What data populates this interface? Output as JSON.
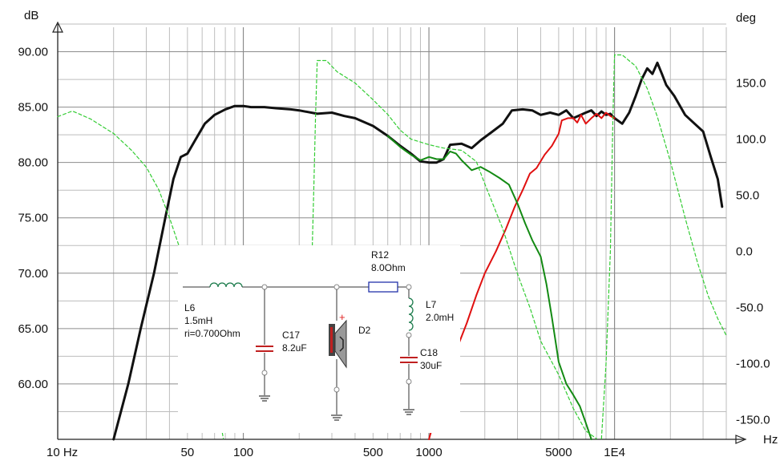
{
  "colors": {
    "spl_total": "#111111",
    "spl_red": "#e01010",
    "spl_green": "#138a13",
    "phase": "#33cc33",
    "grid_major": "#8c8c8c",
    "grid_minor": "#bdbdbd"
  },
  "chart_data": {
    "type": "line",
    "xlabel": "Hz",
    "ylabel": "dB",
    "y2label": "deg",
    "xscale": "log",
    "xlim": [
      10,
      40000
    ],
    "ylim": [
      55,
      92.5
    ],
    "y2lim": [
      -167.5,
      202.5
    ],
    "grid": true,
    "xticks": [
      {
        "value": 10,
        "label": "10 Hz"
      },
      {
        "value": 50,
        "label": "50"
      },
      {
        "value": 100,
        "label": "100"
      },
      {
        "value": 500,
        "label": "500"
      },
      {
        "value": 1000,
        "label": "1000"
      },
      {
        "value": 5000,
        "label": "5000"
      },
      {
        "value": 10000,
        "label": "1E4"
      }
    ],
    "yticks": [
      {
        "value": 90,
        "label": "90.00"
      },
      {
        "value": 85,
        "label": "85.00"
      },
      {
        "value": 80,
        "label": "80.00"
      },
      {
        "value": 75,
        "label": "75.00"
      },
      {
        "value": 70,
        "label": "70.00"
      },
      {
        "value": 65,
        "label": "65.00"
      },
      {
        "value": 60,
        "label": "60.00"
      }
    ],
    "y2ticks": [
      {
        "value": 150,
        "label": "150.0"
      },
      {
        "value": 100,
        "label": "100.0"
      },
      {
        "value": 50,
        "label": "50.0"
      },
      {
        "value": 0,
        "label": "0.0"
      },
      {
        "value": -50,
        "label": "-50.0"
      },
      {
        "value": -100,
        "label": "-100.0"
      },
      {
        "value": -150,
        "label": "-150.0"
      }
    ],
    "series": [
      {
        "axis": "y",
        "colorKey": "spl_total",
        "width": 3,
        "dash": "",
        "points": [
          [
            20,
            55
          ],
          [
            24,
            60
          ],
          [
            28,
            65
          ],
          [
            33,
            70
          ],
          [
            38,
            75
          ],
          [
            42,
            78.5
          ],
          [
            46,
            80.5
          ],
          [
            50,
            80.8
          ],
          [
            55,
            82
          ],
          [
            62,
            83.5
          ],
          [
            70,
            84.3
          ],
          [
            80,
            84.8
          ],
          [
            90,
            85.1
          ],
          [
            100,
            85.1
          ],
          [
            110,
            85
          ],
          [
            130,
            85
          ],
          [
            150,
            84.9
          ],
          [
            180,
            84.8
          ],
          [
            200,
            84.7
          ],
          [
            250,
            84.4
          ],
          [
            300,
            84.5
          ],
          [
            350,
            84.2
          ],
          [
            400,
            84
          ],
          [
            500,
            83.3
          ],
          [
            600,
            82.4
          ],
          [
            700,
            81.5
          ],
          [
            800,
            80.8
          ],
          [
            900,
            80.1
          ],
          [
            1000,
            80
          ],
          [
            1100,
            80
          ],
          [
            1200,
            80.3
          ],
          [
            1300,
            81.6
          ],
          [
            1500,
            81.7
          ],
          [
            1700,
            81.3
          ],
          [
            1900,
            82
          ],
          [
            2200,
            82.8
          ],
          [
            2500,
            83.5
          ],
          [
            2800,
            84.7
          ],
          [
            3200,
            84.8
          ],
          [
            3600,
            84.7
          ],
          [
            4000,
            84.3
          ],
          [
            4500,
            84.5
          ],
          [
            5000,
            84.3
          ],
          [
            5500,
            84.7
          ],
          [
            6000,
            84
          ],
          [
            7000,
            84.5
          ],
          [
            7500,
            84.7
          ],
          [
            8000,
            84.2
          ],
          [
            8500,
            84.6
          ],
          [
            9000,
            84.3
          ],
          [
            9500,
            84.4
          ],
          [
            10000,
            84
          ],
          [
            11000,
            83.5
          ],
          [
            12000,
            84.5
          ],
          [
            13000,
            86
          ],
          [
            14000,
            87.5
          ],
          [
            15000,
            88.5
          ],
          [
            16000,
            88
          ],
          [
            17000,
            89
          ],
          [
            18000,
            88
          ],
          [
            19000,
            87
          ],
          [
            21000,
            86
          ],
          [
            24000,
            84.3
          ],
          [
            27000,
            83.5
          ],
          [
            30000,
            82.8
          ],
          [
            33000,
            80.5
          ],
          [
            36000,
            78.5
          ],
          [
            38000,
            76
          ]
        ]
      },
      {
        "axis": "y",
        "colorKey": "spl_red",
        "width": 2,
        "dash": "",
        "points": [
          [
            1000,
            55
          ],
          [
            1100,
            57.5
          ],
          [
            1200,
            60
          ],
          [
            1400,
            63
          ],
          [
            1600,
            65.5
          ],
          [
            1800,
            68
          ],
          [
            2000,
            70
          ],
          [
            2300,
            72
          ],
          [
            2600,
            74
          ],
          [
            2900,
            76
          ],
          [
            3200,
            77.5
          ],
          [
            3500,
            79
          ],
          [
            3800,
            79.5
          ],
          [
            4200,
            80.7
          ],
          [
            4600,
            81.5
          ],
          [
            5000,
            82.6
          ],
          [
            5200,
            83.8
          ],
          [
            5600,
            84
          ],
          [
            6000,
            84
          ],
          [
            6300,
            83.6
          ],
          [
            6600,
            84.3
          ],
          [
            7000,
            83.5
          ],
          [
            7500,
            84
          ],
          [
            8000,
            84.4
          ],
          [
            8500,
            84
          ],
          [
            9000,
            84.5
          ],
          [
            9500,
            84.2
          ],
          [
            10000,
            84
          ]
        ]
      },
      {
        "axis": "y",
        "colorKey": "spl_green",
        "width": 2,
        "dash": "",
        "points": [
          [
            600,
            82.4
          ],
          [
            700,
            81.4
          ],
          [
            800,
            80.7
          ],
          [
            900,
            80.2
          ],
          [
            1000,
            80.5
          ],
          [
            1100,
            80.3
          ],
          [
            1200,
            80.3
          ],
          [
            1300,
            81
          ],
          [
            1400,
            80.8
          ],
          [
            1500,
            80.2
          ],
          [
            1700,
            79.3
          ],
          [
            1900,
            79.6
          ],
          [
            2100,
            79.2
          ],
          [
            2400,
            78.6
          ],
          [
            2700,
            78
          ],
          [
            3000,
            76.3
          ],
          [
            3300,
            74.5
          ],
          [
            3600,
            73
          ],
          [
            4000,
            71.5
          ],
          [
            4300,
            69
          ],
          [
            4600,
            66
          ],
          [
            5000,
            62
          ],
          [
            5500,
            60
          ],
          [
            6000,
            59
          ],
          [
            6500,
            58
          ],
          [
            7000,
            56.5
          ],
          [
            7500,
            55
          ]
        ]
      },
      {
        "axis": "y2",
        "colorKey": "phase",
        "width": 1.2,
        "dash": "4 3",
        "points": [
          [
            10,
            120
          ],
          [
            12,
            125
          ],
          [
            15,
            118
          ],
          [
            20,
            105
          ],
          [
            25,
            90
          ],
          [
            30,
            75
          ],
          [
            35,
            55
          ],
          [
            40,
            30
          ],
          [
            45,
            5
          ],
          [
            50,
            -20
          ],
          [
            55,
            -45
          ],
          [
            60,
            -70
          ],
          [
            65,
            -95
          ],
          [
            70,
            -120
          ],
          [
            75,
            -150
          ],
          [
            78,
            -167
          ]
        ]
      },
      {
        "axis": "y2",
        "colorKey": "phase",
        "width": 1.2,
        "dash": "4 3",
        "points": [
          [
            235,
            0
          ],
          [
            240,
            60
          ],
          [
            245,
            120
          ],
          [
            250,
            170
          ],
          [
            280,
            170
          ],
          [
            320,
            160
          ],
          [
            400,
            150
          ],
          [
            500,
            135
          ],
          [
            600,
            122
          ],
          [
            700,
            108
          ],
          [
            800,
            100
          ],
          [
            1000,
            95
          ],
          [
            1200,
            92
          ],
          [
            1500,
            90
          ],
          [
            1800,
            80
          ],
          [
            2000,
            60
          ],
          [
            2500,
            20
          ],
          [
            3000,
            -20
          ],
          [
            3500,
            -50
          ],
          [
            4000,
            -80
          ],
          [
            5000,
            -110
          ],
          [
            6000,
            -140
          ],
          [
            7000,
            -160
          ],
          [
            8000,
            -167
          ]
        ]
      },
      {
        "axis": "y2",
        "colorKey": "phase",
        "width": 1.2,
        "dash": "4 3",
        "points": [
          [
            8500,
            -167
          ],
          [
            9000,
            -100
          ],
          [
            9500,
            0
          ],
          [
            9800,
            120
          ],
          [
            10000,
            175
          ],
          [
            11000,
            175
          ],
          [
            13000,
            165
          ],
          [
            15000,
            145
          ],
          [
            17000,
            120
          ],
          [
            20000,
            80
          ],
          [
            24000,
            30
          ],
          [
            28000,
            -10
          ],
          [
            32000,
            -40
          ],
          [
            36000,
            -60
          ],
          [
            40000,
            -75
          ]
        ]
      }
    ]
  },
  "schematic": {
    "L6": {
      "name": "L6",
      "value": "1.5mH",
      "ri": "ri=0.700Ohm"
    },
    "C17": {
      "name": "C17",
      "value": "8.2uF"
    },
    "D2": {
      "name": "D2"
    },
    "R12": {
      "name": "R12",
      "value": "8.0Ohm"
    },
    "L7": {
      "name": "L7",
      "value": "2.0mH"
    },
    "C18": {
      "name": "C18",
      "value": "30uF"
    },
    "polarity": "+"
  }
}
